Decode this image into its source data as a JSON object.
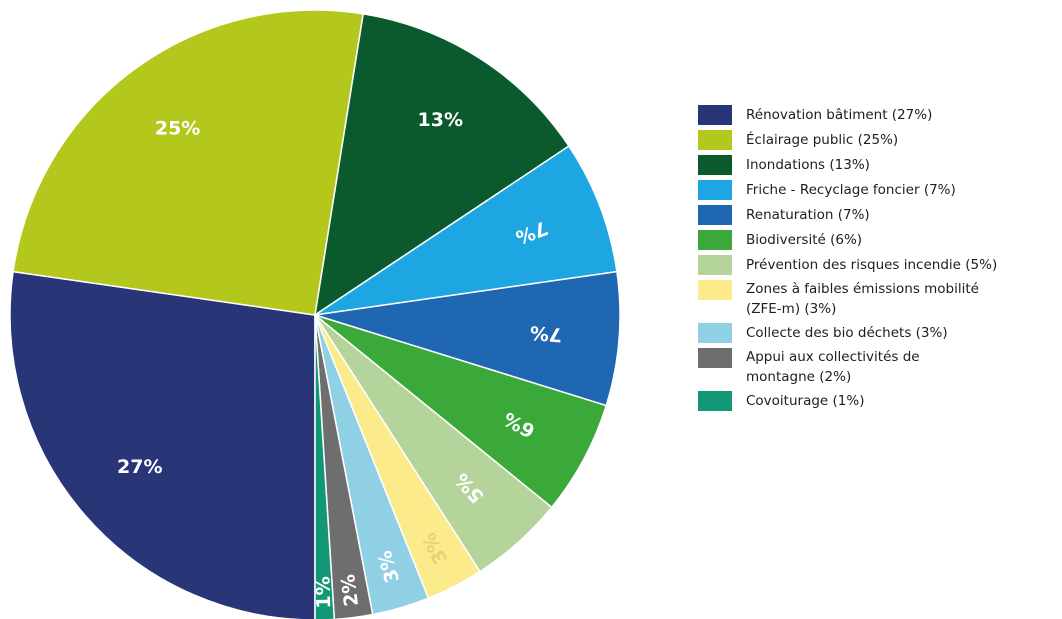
{
  "chart_data": {
    "type": "pie",
    "title": "",
    "legend_position": "right",
    "slices": [
      {
        "label": "Rénovation bâtiment (27%)",
        "value": 27,
        "data_label": "27%",
        "color": "#283577",
        "label_color": "#ffffff"
      },
      {
        "label": "Éclairage public (25%)",
        "value": 25,
        "data_label": "25%",
        "color": "#b3c71d",
        "label_color": "#ffffff"
      },
      {
        "label": "Inondations (13%)",
        "value": 13,
        "data_label": "13%",
        "color": "#0b5a2e",
        "label_color": "#ffffff"
      },
      {
        "label": "Friche - Recyclage foncier (7%)",
        "value": 7,
        "data_label": "7%",
        "color": "#1ea6e3",
        "label_color": "#ffffff"
      },
      {
        "label": "Renaturation (7%)",
        "value": 7,
        "data_label": "7%",
        "color": "#1f66b3",
        "label_color": "#ffffff"
      },
      {
        "label": "Biodiversité (6%)",
        "value": 6,
        "data_label": "6%",
        "color": "#3ba83a",
        "label_color": "#ffffff"
      },
      {
        "label": "Prévention des risques incendie (5%)",
        "value": 5,
        "data_label": "5%",
        "color": "#b5d49c",
        "label_color": "#ffffff"
      },
      {
        "label": "Zones à faibles émissions mobilité (ZFE-m) (3%)",
        "value": 3,
        "data_label": "3%",
        "color": "#fbeb8a",
        "label_color": "#e3d27a"
      },
      {
        "label": "Collecte des bio déchets (3%)",
        "value": 3,
        "data_label": "3%",
        "color": "#90d0e5",
        "label_color": "#ffffff"
      },
      {
        "label": "Appui aux collectivités de montagne (2%)",
        "value": 2,
        "data_label": "2%",
        "color": "#6e6e6e",
        "label_color": "#ffffff"
      },
      {
        "label": "Covoiturage (1%)",
        "value": 1,
        "data_label": "1%",
        "color": "#129876",
        "label_color": "#ffffff"
      }
    ]
  },
  "legend": {
    "items": [
      {
        "lines": [
          "Rénovation bâtiment (27%)"
        ],
        "color": "#283577"
      },
      {
        "lines": [
          "Éclairage public (25%)"
        ],
        "color": "#b3c71d"
      },
      {
        "lines": [
          "Inondations (13%)"
        ],
        "color": "#0b5a2e"
      },
      {
        "lines": [
          "Friche - Recyclage foncier (7%)"
        ],
        "color": "#1ea6e3"
      },
      {
        "lines": [
          "Renaturation (7%)"
        ],
        "color": "#1f66b3"
      },
      {
        "lines": [
          "Biodiversité (6%)"
        ],
        "color": "#3ba83a"
      },
      {
        "lines": [
          "Prévention des risques incendie (5%)"
        ],
        "color": "#b5d49c"
      },
      {
        "lines": [
          "Zones à faibles émissions mobilité",
          "(ZFE-m) (3%)"
        ],
        "color": "#fbeb8a"
      },
      {
        "lines": [
          "Collecte des bio déchets (3%)"
        ],
        "color": "#90d0e5"
      },
      {
        "lines": [
          "Appui aux collectivités de",
          "montagne (2%)"
        ],
        "color": "#6e6e6e"
      },
      {
        "lines": [
          "Covoiturage (1%)"
        ],
        "color": "#129876"
      }
    ]
  }
}
